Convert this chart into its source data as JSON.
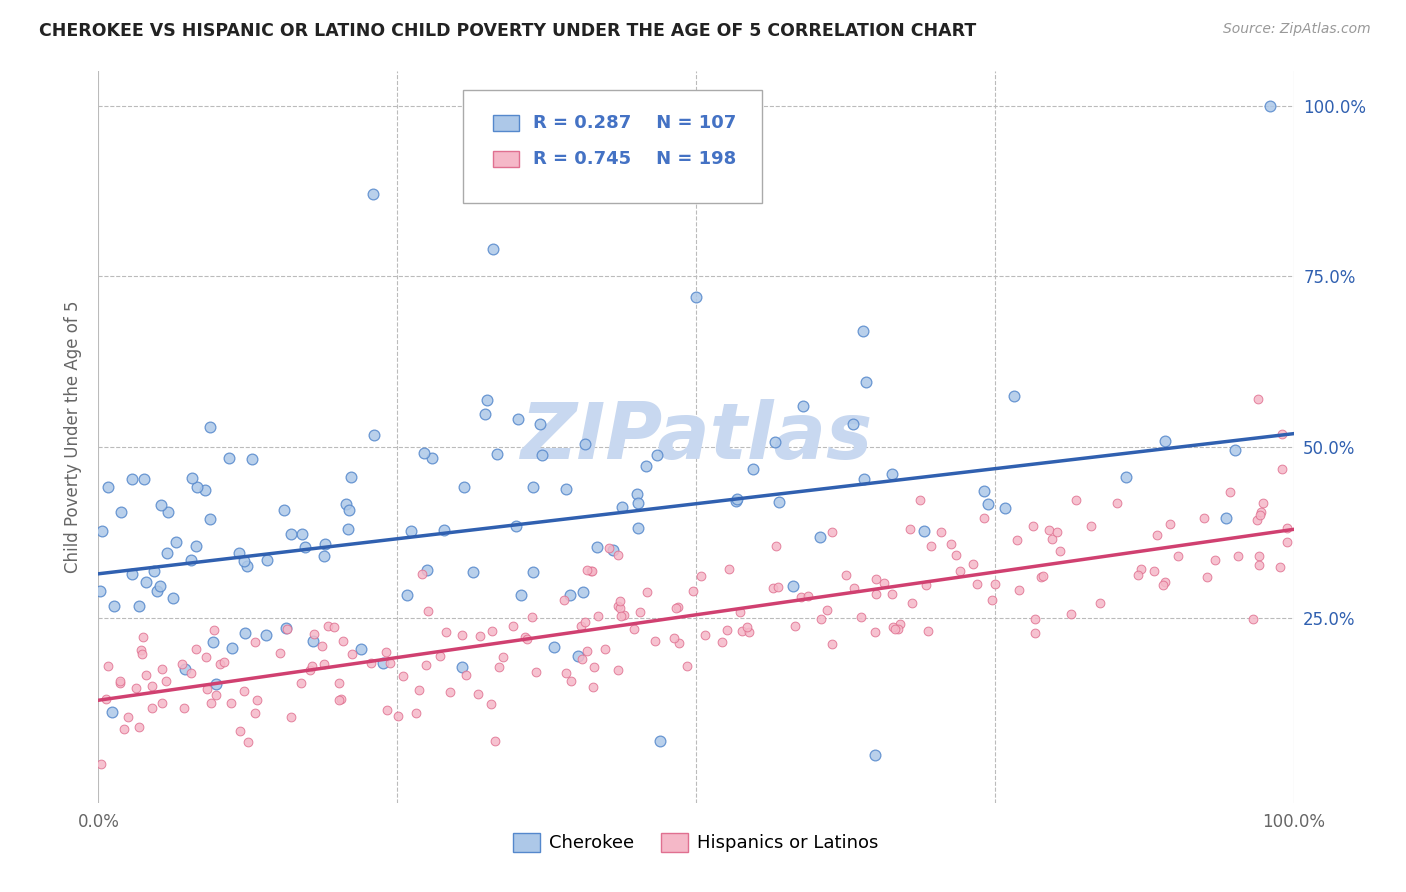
{
  "title": "CHEROKEE VS HISPANIC OR LATINO CHILD POVERTY UNDER THE AGE OF 5 CORRELATION CHART",
  "source": "Source: ZipAtlas.com",
  "ylabel": "Child Poverty Under the Age of 5",
  "xlim": [
    0,
    1
  ],
  "ylim": [
    -0.02,
    1.05
  ],
  "xticks": [
    0,
    0.25,
    0.5,
    0.75,
    1.0
  ],
  "xticklabels": [
    "0.0%",
    "",
    "",
    "",
    "100.0%"
  ],
  "yticks": [
    0.25,
    0.5,
    0.75,
    1.0
  ],
  "yticklabels": [
    "25.0%",
    "50.0%",
    "75.0%",
    "100.0%"
  ],
  "cherokee_R": 0.287,
  "cherokee_N": 107,
  "hispanic_R": 0.745,
  "hispanic_N": 198,
  "cherokee_color": "#adc8e8",
  "cherokee_edge": "#5588cc",
  "cherokee_line_color": "#3060b0",
  "hispanic_color": "#f5b8c8",
  "hispanic_edge": "#e07090",
  "hispanic_line_color": "#d04070",
  "legend_text_color": "#4472c4",
  "watermark_color": "#c8d8f0",
  "background_color": "#ffffff",
  "grid_color": "#bbbbbb",
  "cherokee_line_y0": 0.315,
  "cherokee_line_y1": 0.52,
  "hispanic_line_y0": 0.13,
  "hispanic_line_y1": 0.38
}
